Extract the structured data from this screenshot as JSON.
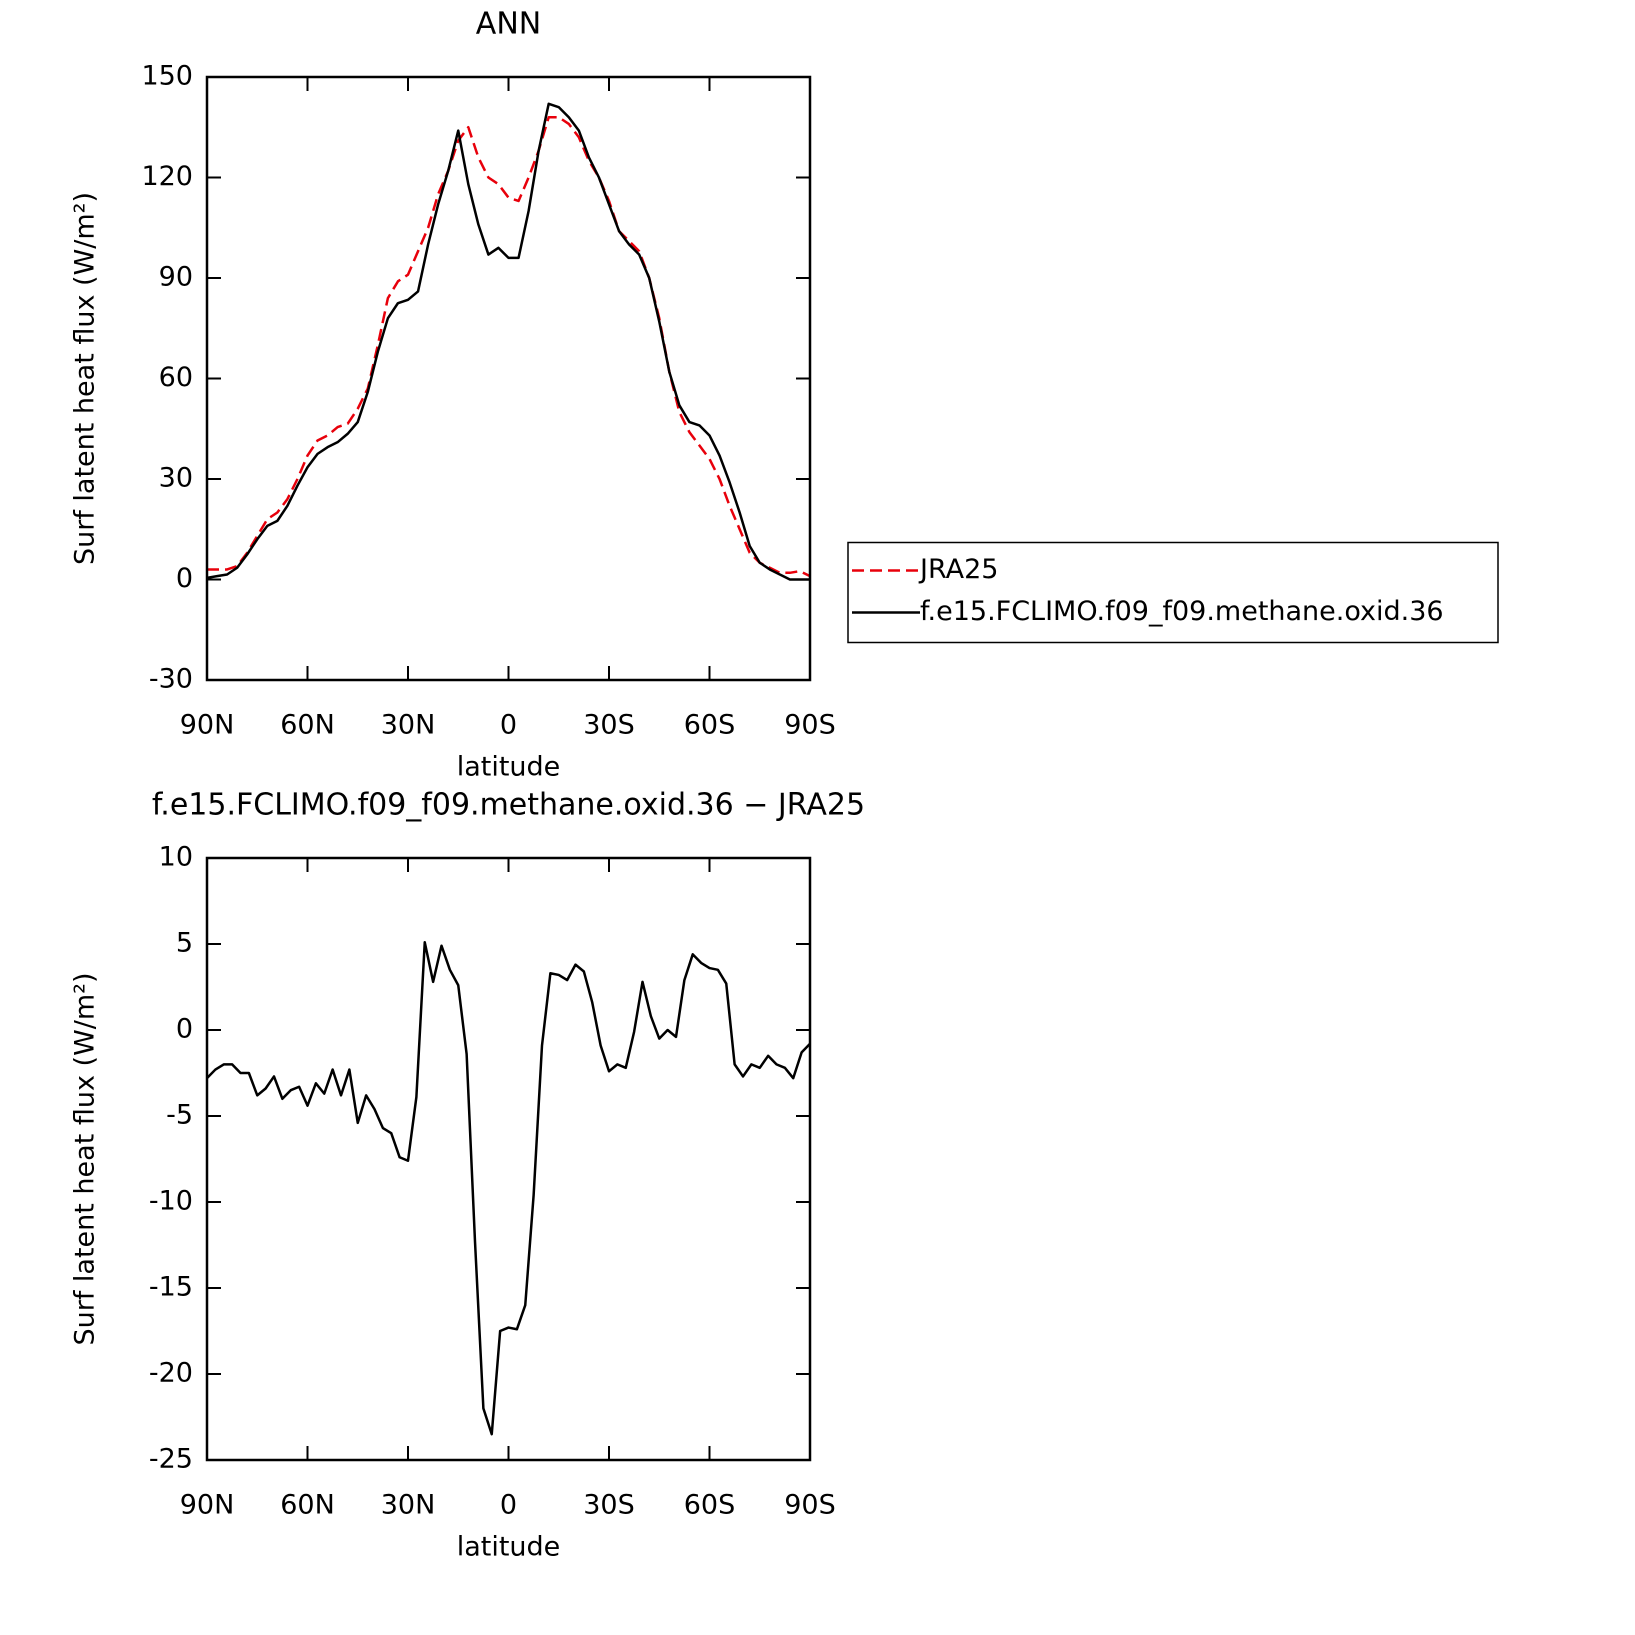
{
  "chart_data": [
    {
      "type": "line",
      "title": "ANN",
      "xlabel": "latitude",
      "ylabel": "Surf latent heat flux (W/m²)",
      "x": [
        90,
        87,
        84,
        81,
        78,
        75,
        72,
        69,
        66,
        63,
        60,
        57,
        54,
        51,
        48,
        45,
        42,
        39,
        36,
        33,
        30,
        27,
        24,
        21,
        18,
        15,
        12,
        9,
        6,
        3,
        0,
        -3,
        -6,
        -9,
        -12,
        -15,
        -18,
        -21,
        -24,
        -27,
        -30,
        -33,
        -36,
        -39,
        -42,
        -45,
        -48,
        -51,
        -54,
        -57,
        -60,
        -63,
        -66,
        -69,
        -72,
        -75,
        -78,
        -81,
        -84,
        -87,
        -90
      ],
      "series": [
        {
          "name": "JRA25",
          "color": "#e8000b",
          "dashed": true,
          "values": [
            3,
            3,
            3,
            4,
            8,
            13,
            18,
            20,
            24,
            30,
            37,
            41.5,
            43,
            45.5,
            46.5,
            51,
            57,
            70,
            84,
            89,
            91,
            98,
            105,
            115,
            122,
            131,
            135,
            126,
            120,
            118,
            114,
            113,
            120,
            128,
            138,
            138,
            136,
            132,
            125,
            120,
            113,
            104,
            101,
            98,
            90,
            78,
            62,
            50,
            44,
            40,
            36,
            30,
            22,
            15,
            8,
            5,
            3.5,
            2,
            2,
            2.5,
            1
          ]
        },
        {
          "name": "f.e15.FCLIMO.f09_f09.methane.oxid.36",
          "color": "#000000",
          "dashed": false,
          "values": [
            0.5,
            1,
            1.5,
            3.5,
            7.5,
            12,
            16,
            17.5,
            22,
            28,
            33.5,
            37.5,
            39.5,
            41,
            43.5,
            47,
            56,
            68,
            78,
            82.5,
            83.5,
            86,
            100,
            112,
            122,
            134,
            118,
            106,
            97,
            99,
            96,
            96,
            110,
            128,
            142,
            141,
            138,
            134,
            126,
            120,
            112,
            104,
            100,
            97,
            90,
            77,
            62,
            52,
            47,
            46,
            43,
            37,
            29,
            20,
            10,
            5,
            3,
            1.5,
            0,
            0,
            0
          ]
        }
      ],
      "xlim": [
        90,
        -90
      ],
      "xticks": [
        {
          "value": 90,
          "label": "90N"
        },
        {
          "value": 60,
          "label": "60N"
        },
        {
          "value": 30,
          "label": "30N"
        },
        0,
        {
          "value": -30,
          "label": "30S"
        },
        {
          "value": -60,
          "label": "60S"
        },
        {
          "value": -90,
          "label": "90S"
        }
      ],
      "ylim": [
        -30,
        150
      ],
      "yticks": [
        -30,
        0,
        30,
        60,
        90,
        120,
        150
      ],
      "legend": "right"
    },
    {
      "type": "line",
      "title": "f.e15.FCLIMO.f09_f09.methane.oxid.36 − JRA25",
      "xlabel": "latitude",
      "ylabel": "Surf latent heat flux (W/m²)",
      "x": [
        90,
        87.5,
        85,
        82.5,
        80,
        77.5,
        75,
        72.5,
        70,
        67.5,
        65,
        62.5,
        60,
        57.5,
        55,
        52.5,
        50,
        47.5,
        45,
        42.5,
        40,
        37.5,
        35,
        32.5,
        30,
        27.5,
        25,
        22.5,
        20,
        17.5,
        15,
        12.5,
        10,
        7.5,
        5,
        2.5,
        0,
        -2.5,
        -5,
        -7.5,
        -10,
        -12.5,
        -15,
        -17.5,
        -20,
        -22.5,
        -25,
        -27.5,
        -30,
        -32.5,
        -35,
        -37.5,
        -40,
        -42.5,
        -45,
        -47.5,
        -50,
        -52.5,
        -55,
        -57.5,
        -60,
        -62.5,
        -65,
        -67.5,
        -70,
        -72.5,
        -75,
        -77.5,
        -80,
        -82.5,
        -85,
        -87.5,
        -90
      ],
      "values": [
        -2.8,
        -2.3,
        -2.0,
        -2.0,
        -2.5,
        -2.5,
        -3.8,
        -3.4,
        -2.7,
        -4.0,
        -3.5,
        -3.3,
        -4.4,
        -3.1,
        -3.7,
        -2.3,
        -3.8,
        -2.3,
        -5.4,
        -3.8,
        -4.6,
        -5.7,
        -6.0,
        -7.4,
        -7.6,
        -3.9,
        5.1,
        2.8,
        4.9,
        3.5,
        2.6,
        -1.4,
        -12.3,
        -22.0,
        -23.5,
        -17.5,
        -17.3,
        -17.4,
        -16.0,
        -9.6,
        -0.9,
        3.3,
        3.2,
        2.9,
        3.8,
        3.4,
        1.6,
        -0.9,
        -2.4,
        -2.0,
        -2.2,
        -0.1,
        2.8,
        0.8,
        -0.5,
        0.0,
        -0.4,
        2.9,
        4.4,
        3.9,
        3.6,
        3.5,
        2.7,
        -2.0,
        -2.7,
        -2.0,
        -2.2,
        -1.5,
        -2.0,
        -2.2,
        -2.8,
        -1.3,
        -0.8
      ],
      "color": "#000000",
      "xlim": [
        90,
        -90
      ],
      "xticks": [
        {
          "value": 90,
          "label": "90N"
        },
        {
          "value": 60,
          "label": "60N"
        },
        {
          "value": 30,
          "label": "30N"
        },
        0,
        {
          "value": -30,
          "label": "30S"
        },
        {
          "value": -60,
          "label": "60S"
        },
        {
          "value": -90,
          "label": "90S"
        }
      ],
      "ylim": [
        -25,
        10
      ],
      "yticks": [
        -25,
        -20,
        -15,
        -10,
        -5,
        0,
        5,
        10
      ]
    }
  ]
}
